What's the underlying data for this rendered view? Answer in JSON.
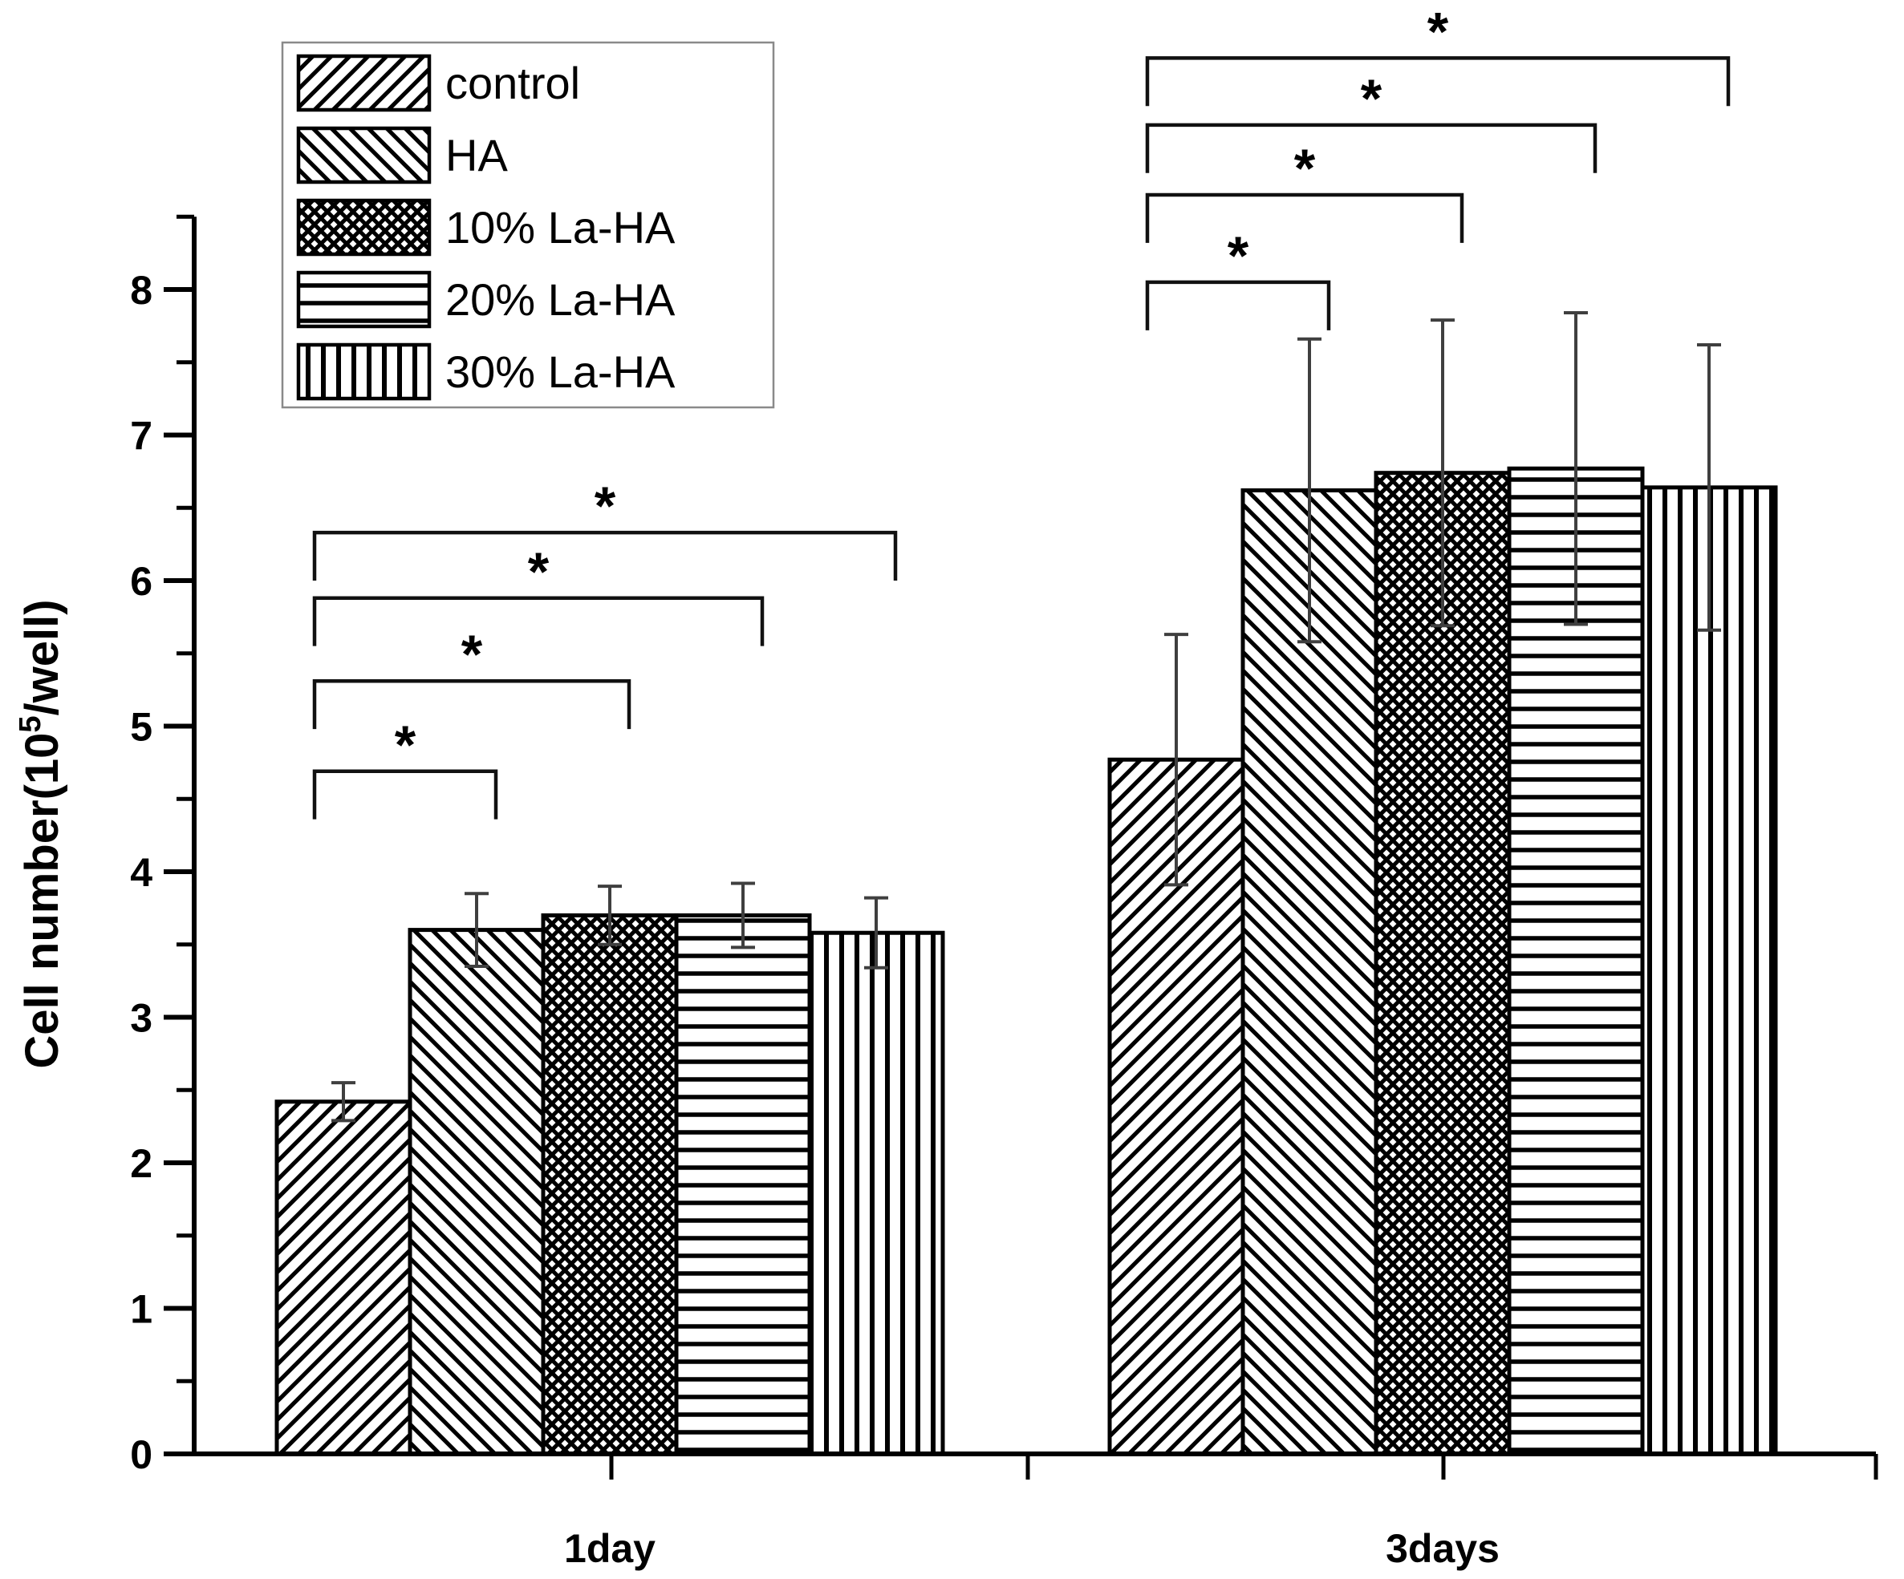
{
  "figure": {
    "background": "#ffffff",
    "type_label": "grouped bar chart with error bars and significance brackets"
  },
  "colors": {
    "bar_fill": "#ffffff",
    "bar_stroke": "#000000",
    "error_bar": "#3f3f3f",
    "bracket": "#111111",
    "legend_border": "#8a8a8a",
    "axis": "#000000",
    "text": "#000000"
  },
  "chart_data": {
    "type": "bar",
    "title": "",
    "ylabel_prefix": "Cell number(10",
    "ylabel_sup": "5",
    "ylabel_suffix": "/well)",
    "xlabel": "",
    "categories": [
      "1day",
      "3days"
    ],
    "yticks": [
      0,
      1,
      2,
      3,
      4,
      5,
      6,
      7,
      8
    ],
    "ylim": [
      0,
      8.5
    ],
    "grid": false,
    "legend_position": "top-left",
    "series": [
      {
        "name": "control",
        "pattern": "diag-up",
        "values": [
          2.42,
          4.77
        ],
        "errors": [
          0.13,
          0.86
        ]
      },
      {
        "name": "HA",
        "pattern": "diag-down",
        "values": [
          3.6,
          6.62
        ],
        "errors": [
          0.25,
          1.04
        ]
      },
      {
        "name": "10% La-HA",
        "pattern": "crosshatch",
        "values": [
          3.7,
          6.74
        ],
        "errors": [
          0.2,
          1.05
        ]
      },
      {
        "name": "20% La-HA",
        "pattern": "horizontal",
        "values": [
          3.7,
          6.77
        ],
        "errors": [
          0.22,
          1.07
        ]
      },
      {
        "name": "30% La-HA",
        "pattern": "vertical",
        "values": [
          3.58,
          6.64
        ],
        "errors": [
          0.24,
          0.98
        ]
      }
    ],
    "significance": {
      "symbol": "*",
      "leg_drop_units": 0.33,
      "brackets": [
        {
          "group": 0,
          "from": 0,
          "to": 1,
          "y": 4.69
        },
        {
          "group": 0,
          "from": 0,
          "to": 2,
          "y": 5.31
        },
        {
          "group": 0,
          "from": 0,
          "to": 3,
          "y": 5.88
        },
        {
          "group": 0,
          "from": 0,
          "to": 4,
          "y": 6.33
        },
        {
          "group": 1,
          "from": 0,
          "to": 1,
          "y": 8.05
        },
        {
          "group": 1,
          "from": 0,
          "to": 2,
          "y": 8.65
        },
        {
          "group": 1,
          "from": 0,
          "to": 3,
          "y": 9.13
        },
        {
          "group": 1,
          "from": 0,
          "to": 4,
          "y": 9.59
        }
      ]
    }
  }
}
